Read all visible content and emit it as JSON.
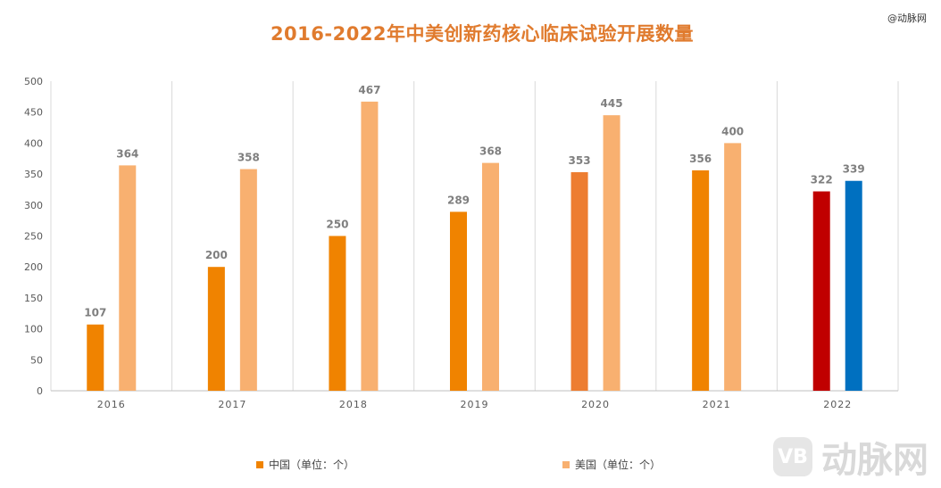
{
  "page": {
    "watermark_top": "@动脉网",
    "logo_text": "动脉网",
    "logo_mark": "VB"
  },
  "chart_data": {
    "type": "bar",
    "title": "2016-2022年中美创新药核心临床试验开展数量",
    "categories": [
      "2016",
      "2017",
      "2018",
      "2019",
      "2020",
      "2021",
      "2022"
    ],
    "ylim": [
      0,
      500
    ],
    "yticks": [
      0,
      50,
      100,
      150,
      200,
      250,
      300,
      350,
      400,
      450,
      500
    ],
    "grid": "vertical category separators",
    "legend_position": "bottom",
    "series": [
      {
        "name": "中国（单位：个）",
        "color": "#F08300",
        "values": [
          107,
          200,
          250,
          289,
          353,
          356,
          322
        ],
        "point_colors": [
          "#F08300",
          "#F08300",
          "#F08300",
          "#F08300",
          "#ED7D31",
          "#F08300",
          "#C00000"
        ]
      },
      {
        "name": "美国（单位：个）",
        "color": "#F8B070",
        "values": [
          364,
          358,
          467,
          368,
          445,
          400,
          339
        ],
        "point_colors": [
          "#F8B070",
          "#F8B070",
          "#F8B070",
          "#F8B070",
          "#F8B070",
          "#F8B070",
          "#0070C0"
        ]
      }
    ]
  }
}
